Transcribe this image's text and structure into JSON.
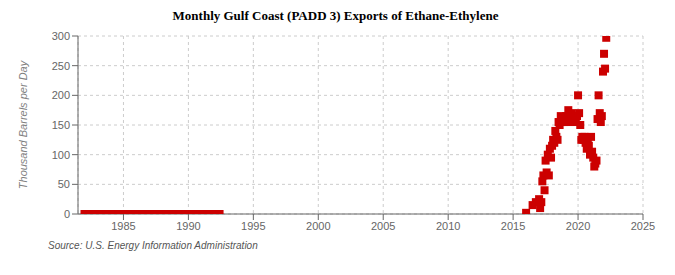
{
  "chart_data": {
    "type": "scatter",
    "title": "Monthly Gulf Coast (PADD 3) Exports of Ethane-Ethylene",
    "ylabel": "Thousand Barrels per Day",
    "annotations": [
      "Source: U.S. Energy Information Administration"
    ],
    "color": "#cc0000",
    "marker": "square",
    "grid": true,
    "xlim": [
      1981.5,
      2025
    ],
    "ylim": [
      0,
      300
    ],
    "xticks": [
      1985,
      1990,
      1995,
      2000,
      2005,
      2010,
      2015,
      2020,
      2025
    ],
    "yticks": [
      0,
      50,
      100,
      150,
      200,
      250,
      300
    ],
    "x": [
      1982.0,
      1982.2,
      1982.5,
      1982.7,
      1983.0,
      1983.2,
      1983.5,
      1983.7,
      1984.0,
      1984.1,
      1984.2,
      1984.3,
      1984.4,
      1984.5,
      1984.6,
      1984.7,
      1984.8,
      1984.9,
      1985.0,
      1985.1,
      1985.2,
      1985.3,
      1985.4,
      1985.5,
      1985.6,
      1985.7,
      1985.8,
      1985.9,
      1986.0,
      1986.1,
      1986.2,
      1986.3,
      1986.4,
      1986.5,
      1986.6,
      1986.7,
      1986.8,
      1986.9,
      1987.0,
      1987.1,
      1987.2,
      1987.3,
      1987.4,
      1987.5,
      1987.6,
      1987.7,
      1987.8,
      1987.9,
      1988.0,
      1988.1,
      1988.2,
      1988.3,
      1988.4,
      1988.5,
      1988.6,
      1988.7,
      1988.8,
      1988.9,
      1989.0,
      1989.1,
      1989.2,
      1989.3,
      1989.4,
      1989.5,
      1989.6,
      1989.7,
      1989.8,
      1989.9,
      1990.0,
      1990.1,
      1990.2,
      1990.3,
      1990.4,
      1990.5,
      1990.6,
      1990.7,
      1990.8,
      1990.9,
      1991.0,
      1991.1,
      1991.2,
      1991.3,
      1991.4,
      1991.5,
      1991.6,
      1991.7,
      1991.8,
      1991.9,
      1992.0,
      1992.1,
      1992.2,
      1992.3,
      1992.4,
      2016.0,
      2016.5,
      2016.75,
      2017.0,
      2017.08,
      2017.17,
      2017.25,
      2017.33,
      2017.42,
      2017.5,
      2017.58,
      2017.67,
      2017.75,
      2017.83,
      2017.92,
      2018.0,
      2018.08,
      2018.17,
      2018.25,
      2018.33,
      2018.42,
      2018.5,
      2018.58,
      2018.67,
      2018.75,
      2018.83,
      2018.92,
      2019.0,
      2019.08,
      2019.17,
      2019.25,
      2019.33,
      2019.42,
      2019.5,
      2019.58,
      2019.67,
      2019.75,
      2019.83,
      2019.92,
      2020.0,
      2020.08,
      2020.17,
      2020.25,
      2020.33,
      2020.42,
      2020.5,
      2020.58,
      2020.67,
      2020.75,
      2020.83,
      2020.92,
      2021.0,
      2021.08,
      2021.17,
      2021.25,
      2021.33,
      2021.42,
      2021.5,
      2021.58,
      2021.67,
      2021.75,
      2021.83,
      2021.92,
      2022.0,
      2022.08,
      2022.17
    ],
    "values": [
      0,
      0,
      0,
      0,
      0,
      0,
      0,
      0,
      0,
      0,
      0,
      0,
      0,
      0,
      0,
      0,
      0,
      0,
      0,
      0,
      0,
      0,
      0,
      0,
      0,
      0,
      0,
      0,
      0,
      0,
      0,
      0,
      0,
      0,
      0,
      0,
      0,
      0,
      0,
      0,
      0,
      0,
      0,
      0,
      0,
      0,
      0,
      0,
      0,
      0,
      0,
      0,
      0,
      0,
      0,
      0,
      0,
      0,
      0,
      0,
      0,
      0,
      0,
      0,
      0,
      0,
      0,
      0,
      0,
      0,
      0,
      0,
      0,
      0,
      0,
      0,
      0,
      0,
      0,
      0,
      0,
      0,
      0,
      0,
      0,
      0,
      0,
      0,
      0,
      0,
      0,
      0,
      0,
      2,
      15,
      20,
      25,
      10,
      20,
      55,
      65,
      40,
      90,
      70,
      100,
      65,
      110,
      95,
      115,
      125,
      120,
      140,
      130,
      125,
      155,
      150,
      165,
      155,
      160,
      155,
      160,
      165,
      155,
      175,
      160,
      165,
      170,
      160,
      165,
      155,
      160,
      165,
      200,
      170,
      150,
      125,
      130,
      125,
      130,
      120,
      110,
      125,
      115,
      100,
      130,
      105,
      95,
      80,
      85,
      90,
      160,
      200,
      170,
      155,
      165,
      240,
      270,
      245,
      297
    ]
  }
}
